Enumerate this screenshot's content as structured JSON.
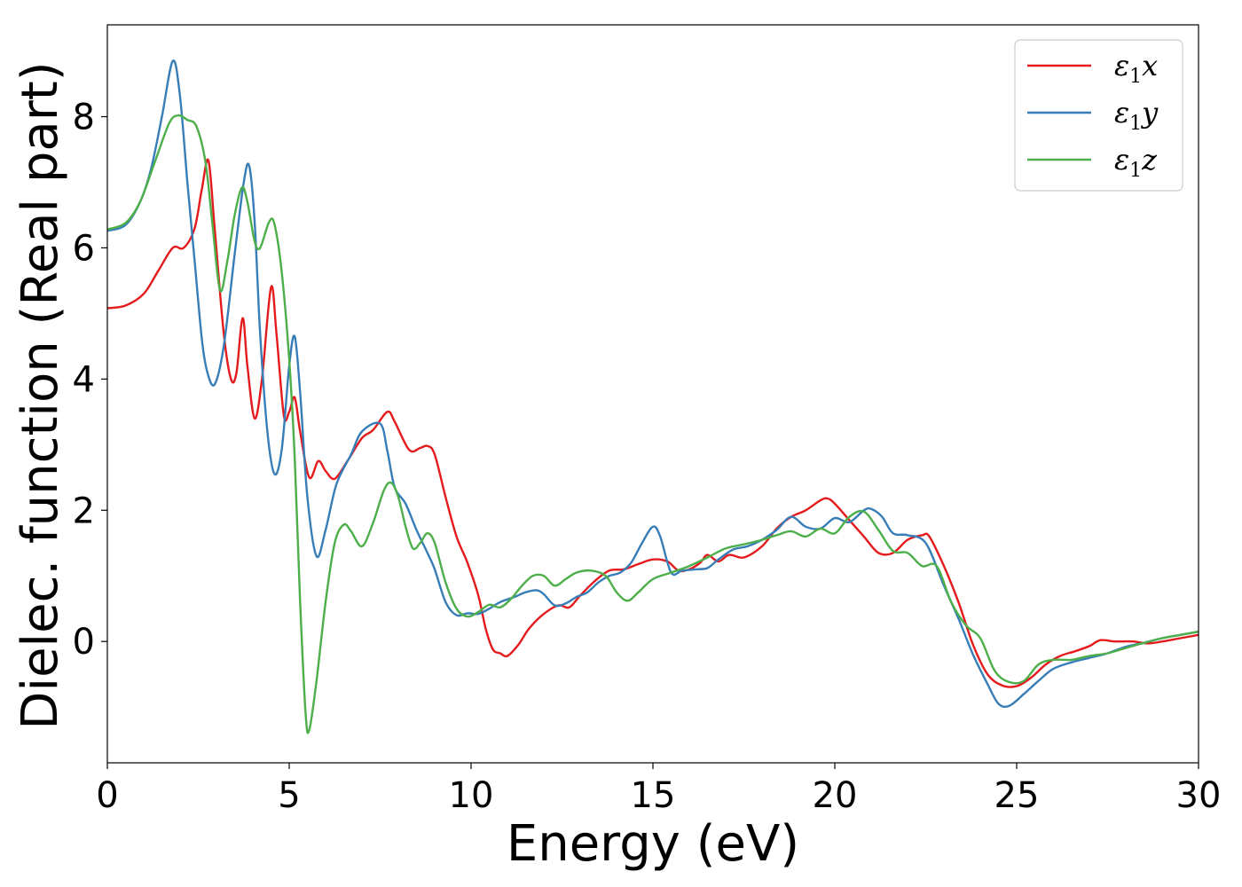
{
  "chart_data": {
    "type": "line",
    "title": "",
    "xlabel": "Energy (eV)",
    "ylabel": "Dielec. function (Real part)",
    "xlim": [
      0,
      30
    ],
    "ylim": [
      -1.85,
      9.4
    ],
    "xticks": [
      "0",
      "5",
      "10",
      "15",
      "20",
      "25",
      "30"
    ],
    "yticks": [
      "0",
      "2",
      "4",
      "6",
      "8"
    ],
    "grid": false,
    "legend_position": "top-right",
    "series": [
      {
        "name": "ε1x",
        "symbol": "ε",
        "sub": "1",
        "suffix": "x",
        "color": "#e41a1c",
        "points": [
          [
            0,
            5.08
          ],
          [
            0.5,
            5.12
          ],
          [
            1.0,
            5.3
          ],
          [
            1.4,
            5.65
          ],
          [
            1.8,
            6.0
          ],
          [
            2.1,
            6.0
          ],
          [
            2.4,
            6.3
          ],
          [
            2.6,
            6.9
          ],
          [
            2.78,
            7.33
          ],
          [
            2.95,
            6.3
          ],
          [
            3.2,
            4.7
          ],
          [
            3.4,
            4.0
          ],
          [
            3.55,
            4.1
          ],
          [
            3.72,
            4.93
          ],
          [
            3.85,
            4.2
          ],
          [
            4.05,
            3.4
          ],
          [
            4.25,
            4.0
          ],
          [
            4.5,
            5.4
          ],
          [
            4.65,
            4.7
          ],
          [
            4.85,
            3.45
          ],
          [
            5.0,
            3.5
          ],
          [
            5.15,
            3.72
          ],
          [
            5.3,
            3.2
          ],
          [
            5.55,
            2.5
          ],
          [
            5.8,
            2.75
          ],
          [
            6.0,
            2.6
          ],
          [
            6.25,
            2.48
          ],
          [
            6.6,
            2.75
          ],
          [
            7.0,
            3.1
          ],
          [
            7.3,
            3.22
          ],
          [
            7.7,
            3.5
          ],
          [
            7.9,
            3.35
          ],
          [
            8.3,
            2.92
          ],
          [
            8.6,
            2.95
          ],
          [
            8.8,
            2.98
          ],
          [
            9.0,
            2.85
          ],
          [
            9.3,
            2.2
          ],
          [
            9.6,
            1.6
          ],
          [
            9.9,
            1.2
          ],
          [
            10.2,
            0.7
          ],
          [
            10.4,
            0.2
          ],
          [
            10.6,
            -0.12
          ],
          [
            10.8,
            -0.18
          ],
          [
            11.0,
            -0.22
          ],
          [
            11.3,
            -0.05
          ],
          [
            11.6,
            0.2
          ],
          [
            12.0,
            0.42
          ],
          [
            12.4,
            0.55
          ],
          [
            12.7,
            0.52
          ],
          [
            13.0,
            0.7
          ],
          [
            13.4,
            0.92
          ],
          [
            13.8,
            1.08
          ],
          [
            14.2,
            1.1
          ],
          [
            14.6,
            1.18
          ],
          [
            15.0,
            1.25
          ],
          [
            15.4,
            1.22
          ],
          [
            15.7,
            1.08
          ],
          [
            16.0,
            1.1
          ],
          [
            16.3,
            1.2
          ],
          [
            16.5,
            1.32
          ],
          [
            16.8,
            1.22
          ],
          [
            17.1,
            1.32
          ],
          [
            17.5,
            1.28
          ],
          [
            18.0,
            1.45
          ],
          [
            18.4,
            1.72
          ],
          [
            18.8,
            1.9
          ],
          [
            19.2,
            2.0
          ],
          [
            19.6,
            2.15
          ],
          [
            19.8,
            2.18
          ],
          [
            20.0,
            2.1
          ],
          [
            20.4,
            1.85
          ],
          [
            20.8,
            1.6
          ],
          [
            21.2,
            1.35
          ],
          [
            21.6,
            1.35
          ],
          [
            22.0,
            1.55
          ],
          [
            22.4,
            1.62
          ],
          [
            22.6,
            1.6
          ],
          [
            23.0,
            1.15
          ],
          [
            23.4,
            0.6
          ],
          [
            23.8,
            -0.05
          ],
          [
            24.2,
            -0.5
          ],
          [
            24.6,
            -0.67
          ],
          [
            25.0,
            -0.68
          ],
          [
            25.4,
            -0.55
          ],
          [
            25.8,
            -0.35
          ],
          [
            26.2,
            -0.22
          ],
          [
            26.6,
            -0.15
          ],
          [
            27.0,
            -0.07
          ],
          [
            27.3,
            0.02
          ],
          [
            27.7,
            0.0
          ],
          [
            28.2,
            0.0
          ],
          [
            28.6,
            -0.03
          ],
          [
            29.0,
            0.0
          ],
          [
            29.5,
            0.05
          ],
          [
            30.0,
            0.1
          ]
        ]
      },
      {
        "name": "ε1y",
        "symbol": "ε",
        "sub": "1",
        "suffix": "y",
        "color": "#377eb8",
        "points": [
          [
            0,
            6.26
          ],
          [
            0.5,
            6.35
          ],
          [
            0.9,
            6.7
          ],
          [
            1.2,
            7.2
          ],
          [
            1.5,
            8.0
          ],
          [
            1.8,
            8.85
          ],
          [
            2.0,
            8.3
          ],
          [
            2.2,
            7.0
          ],
          [
            2.4,
            5.8
          ],
          [
            2.6,
            4.6
          ],
          [
            2.75,
            4.1
          ],
          [
            2.95,
            3.92
          ],
          [
            3.2,
            4.5
          ],
          [
            3.5,
            5.9
          ],
          [
            3.75,
            7.0
          ],
          [
            3.9,
            7.25
          ],
          [
            4.05,
            6.4
          ],
          [
            4.2,
            4.7
          ],
          [
            4.4,
            3.2
          ],
          [
            4.6,
            2.55
          ],
          [
            4.8,
            2.95
          ],
          [
            5.0,
            4.2
          ],
          [
            5.15,
            4.65
          ],
          [
            5.3,
            3.8
          ],
          [
            5.5,
            2.2
          ],
          [
            5.75,
            1.3
          ],
          [
            6.0,
            1.7
          ],
          [
            6.3,
            2.4
          ],
          [
            6.7,
            2.85
          ],
          [
            7.0,
            3.2
          ],
          [
            7.5,
            3.32
          ],
          [
            7.7,
            2.9
          ],
          [
            7.9,
            2.35
          ],
          [
            8.2,
            2.1
          ],
          [
            8.5,
            1.7
          ],
          [
            8.8,
            1.35
          ],
          [
            9.0,
            1.1
          ],
          [
            9.3,
            0.6
          ],
          [
            9.6,
            0.4
          ],
          [
            9.9,
            0.43
          ],
          [
            10.2,
            0.42
          ],
          [
            10.5,
            0.5
          ],
          [
            10.8,
            0.6
          ],
          [
            11.2,
            0.68
          ],
          [
            11.5,
            0.75
          ],
          [
            11.8,
            0.78
          ],
          [
            12.0,
            0.72
          ],
          [
            12.3,
            0.55
          ],
          [
            12.6,
            0.58
          ],
          [
            12.9,
            0.68
          ],
          [
            13.2,
            0.75
          ],
          [
            13.5,
            0.9
          ],
          [
            13.8,
            1.0
          ],
          [
            14.1,
            1.05
          ],
          [
            14.4,
            1.2
          ],
          [
            14.7,
            1.5
          ],
          [
            15.0,
            1.75
          ],
          [
            15.2,
            1.6
          ],
          [
            15.5,
            1.05
          ],
          [
            15.8,
            1.08
          ],
          [
            16.2,
            1.1
          ],
          [
            16.5,
            1.12
          ],
          [
            16.8,
            1.25
          ],
          [
            17.2,
            1.4
          ],
          [
            17.6,
            1.45
          ],
          [
            18.0,
            1.55
          ],
          [
            18.4,
            1.7
          ],
          [
            18.8,
            1.9
          ],
          [
            19.2,
            1.75
          ],
          [
            19.6,
            1.72
          ],
          [
            20.0,
            1.88
          ],
          [
            20.4,
            1.82
          ],
          [
            20.8,
            2.0
          ],
          [
            21.0,
            2.02
          ],
          [
            21.3,
            1.9
          ],
          [
            21.6,
            1.65
          ],
          [
            22.0,
            1.62
          ],
          [
            22.5,
            1.5
          ],
          [
            23.0,
            0.85
          ],
          [
            23.4,
            0.35
          ],
          [
            23.8,
            -0.2
          ],
          [
            24.2,
            -0.65
          ],
          [
            24.5,
            -0.95
          ],
          [
            24.8,
            -0.98
          ],
          [
            25.2,
            -0.8
          ],
          [
            25.6,
            -0.6
          ],
          [
            26.0,
            -0.42
          ],
          [
            26.5,
            -0.32
          ],
          [
            27.0,
            -0.25
          ],
          [
            27.5,
            -0.18
          ],
          [
            28.0,
            -0.08
          ],
          [
            28.5,
            -0.02
          ],
          [
            29.0,
            0.05
          ],
          [
            29.5,
            0.1
          ],
          [
            30.0,
            0.15
          ]
        ]
      },
      {
        "name": "ε1z",
        "symbol": "ε",
        "sub": "1",
        "suffix": "z",
        "color": "#4daf4a",
        "points": [
          [
            0,
            6.28
          ],
          [
            0.5,
            6.38
          ],
          [
            0.9,
            6.7
          ],
          [
            1.3,
            7.3
          ],
          [
            1.7,
            7.9
          ],
          [
            1.95,
            8.02
          ],
          [
            2.2,
            7.95
          ],
          [
            2.45,
            7.85
          ],
          [
            2.7,
            7.3
          ],
          [
            2.9,
            6.3
          ],
          [
            3.1,
            5.35
          ],
          [
            3.3,
            5.8
          ],
          [
            3.5,
            6.5
          ],
          [
            3.7,
            6.92
          ],
          [
            3.85,
            6.7
          ],
          [
            4.05,
            6.1
          ],
          [
            4.2,
            6.0
          ],
          [
            4.45,
            6.4
          ],
          [
            4.6,
            6.35
          ],
          [
            4.8,
            5.6
          ],
          [
            5.0,
            4.3
          ],
          [
            5.15,
            2.8
          ],
          [
            5.3,
            0.6
          ],
          [
            5.45,
            -1.1
          ],
          [
            5.55,
            -1.35
          ],
          [
            5.75,
            -0.6
          ],
          [
            6.0,
            0.6
          ],
          [
            6.25,
            1.5
          ],
          [
            6.5,
            1.78
          ],
          [
            6.7,
            1.68
          ],
          [
            7.0,
            1.45
          ],
          [
            7.3,
            1.8
          ],
          [
            7.6,
            2.3
          ],
          [
            7.8,
            2.42
          ],
          [
            8.0,
            2.2
          ],
          [
            8.2,
            1.75
          ],
          [
            8.4,
            1.42
          ],
          [
            8.6,
            1.5
          ],
          [
            8.8,
            1.65
          ],
          [
            9.0,
            1.5
          ],
          [
            9.3,
            0.9
          ],
          [
            9.6,
            0.5
          ],
          [
            9.9,
            0.38
          ],
          [
            10.2,
            0.45
          ],
          [
            10.5,
            0.56
          ],
          [
            10.8,
            0.52
          ],
          [
            11.1,
            0.65
          ],
          [
            11.4,
            0.85
          ],
          [
            11.7,
            1.0
          ],
          [
            12.0,
            1.0
          ],
          [
            12.3,
            0.85
          ],
          [
            12.6,
            0.95
          ],
          [
            12.9,
            1.05
          ],
          [
            13.3,
            1.08
          ],
          [
            13.7,
            1.0
          ],
          [
            14.0,
            0.75
          ],
          [
            14.3,
            0.62
          ],
          [
            14.6,
            0.75
          ],
          [
            15.0,
            0.95
          ],
          [
            15.5,
            1.05
          ],
          [
            16.0,
            1.15
          ],
          [
            16.5,
            1.28
          ],
          [
            17.0,
            1.42
          ],
          [
            17.5,
            1.48
          ],
          [
            18.0,
            1.55
          ],
          [
            18.4,
            1.62
          ],
          [
            18.8,
            1.68
          ],
          [
            19.2,
            1.6
          ],
          [
            19.6,
            1.72
          ],
          [
            20.0,
            1.65
          ],
          [
            20.4,
            1.9
          ],
          [
            20.8,
            1.98
          ],
          [
            21.2,
            1.7
          ],
          [
            21.6,
            1.38
          ],
          [
            22.0,
            1.35
          ],
          [
            22.4,
            1.15
          ],
          [
            22.8,
            1.15
          ],
          [
            23.2,
            0.6
          ],
          [
            23.6,
            0.25
          ],
          [
            24.0,
            0.05
          ],
          [
            24.4,
            -0.45
          ],
          [
            24.8,
            -0.62
          ],
          [
            25.2,
            -0.6
          ],
          [
            25.6,
            -0.35
          ],
          [
            26.0,
            -0.28
          ],
          [
            26.5,
            -0.28
          ],
          [
            27.0,
            -0.22
          ],
          [
            27.5,
            -0.18
          ],
          [
            28.0,
            -0.1
          ],
          [
            28.5,
            -0.02
          ],
          [
            29.0,
            0.05
          ],
          [
            29.5,
            0.1
          ],
          [
            30.0,
            0.15
          ]
        ]
      }
    ]
  }
}
